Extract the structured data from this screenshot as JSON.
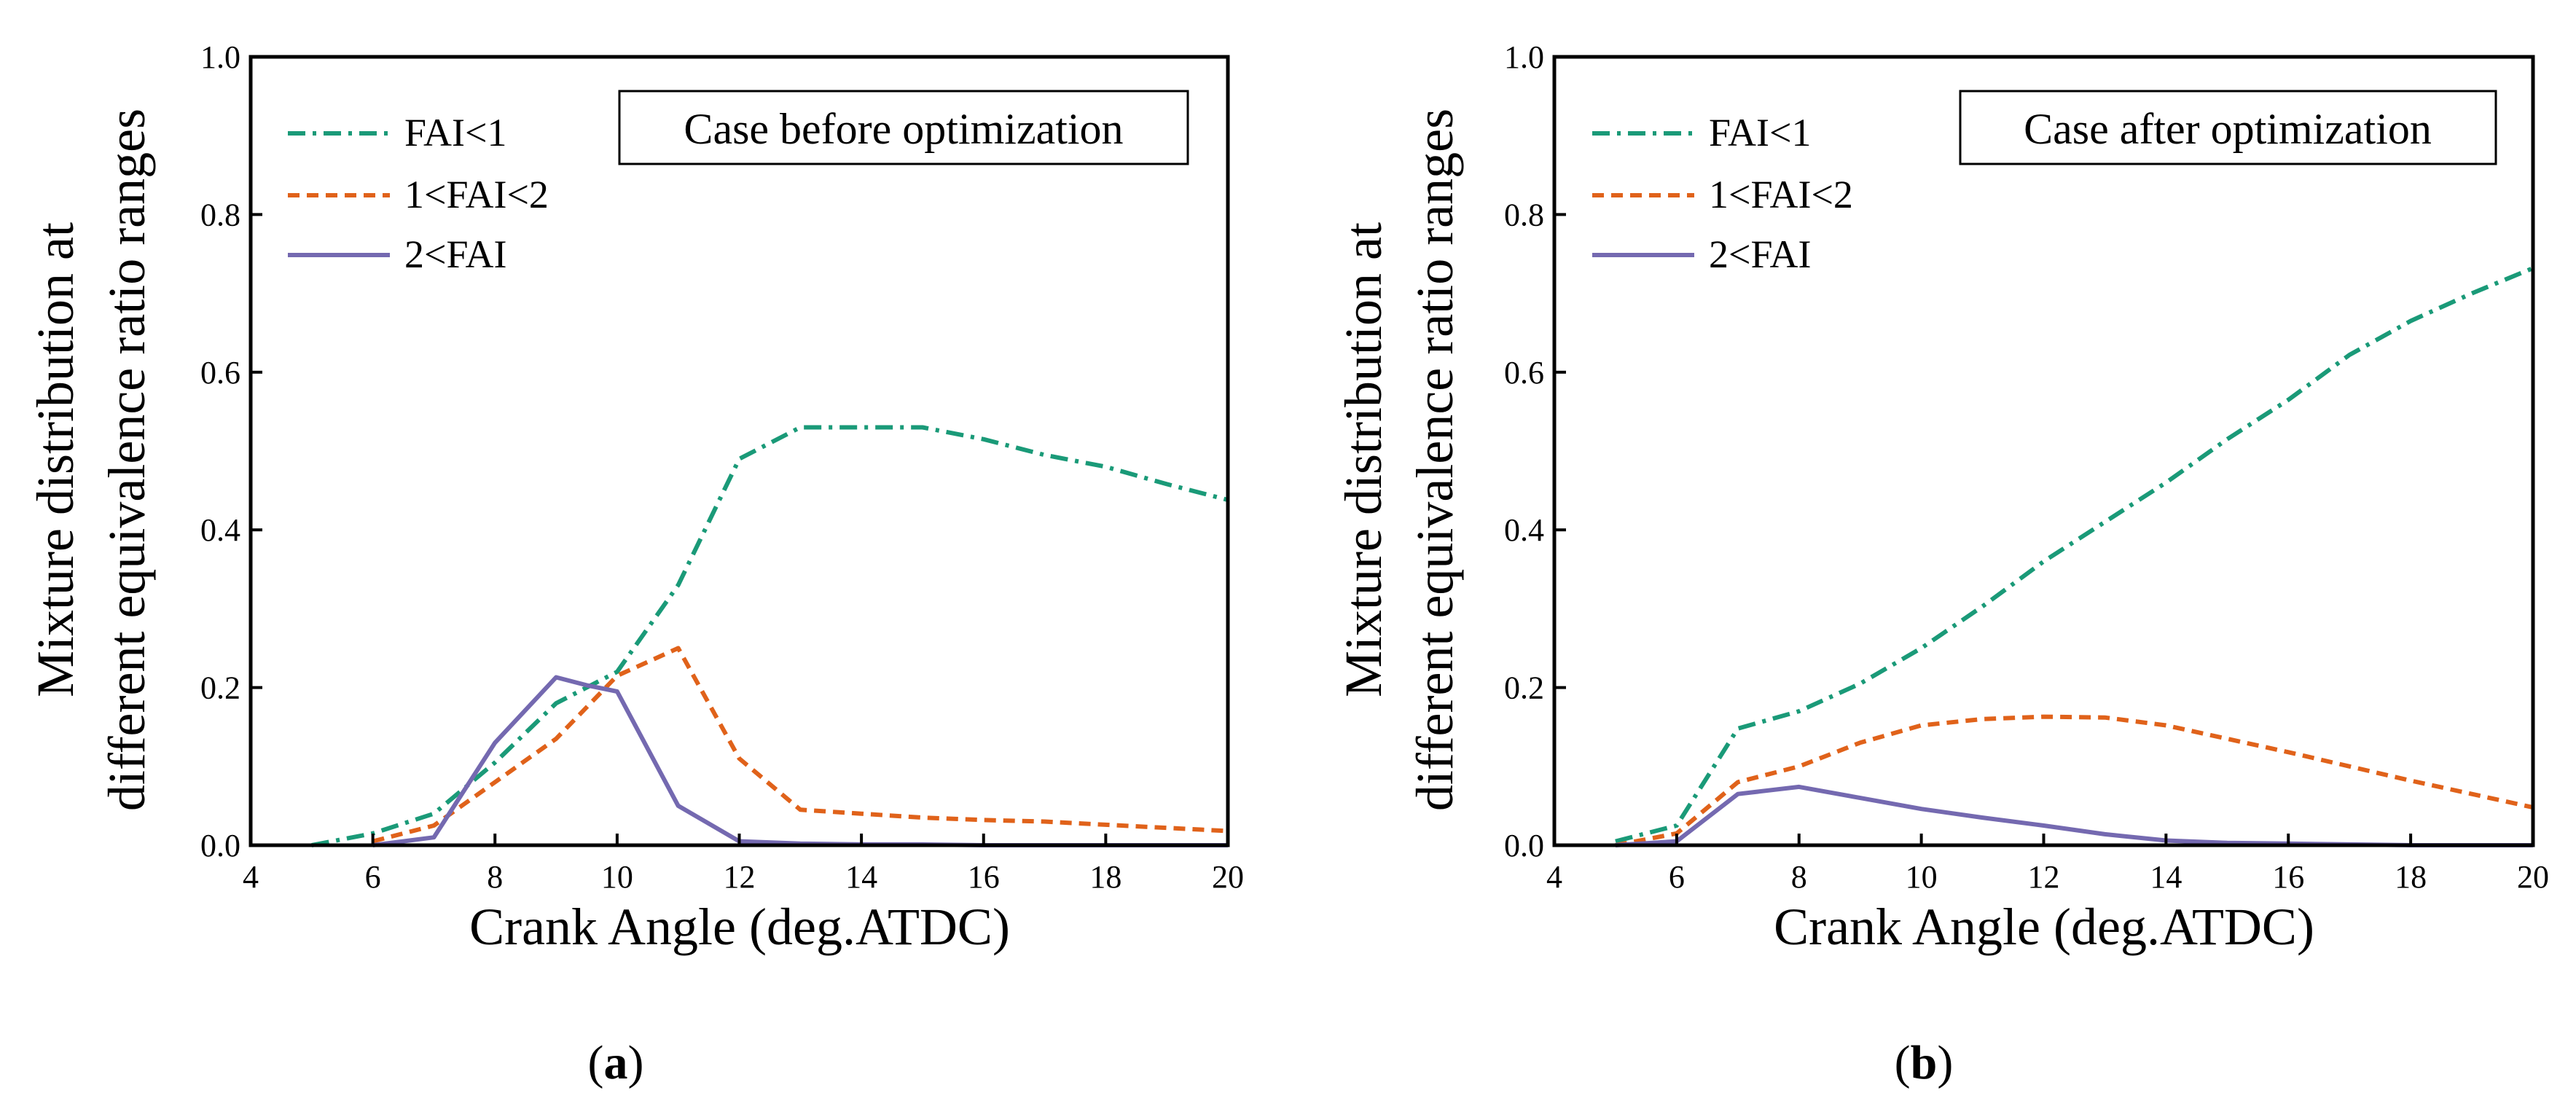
{
  "chart_data": [
    {
      "type": "line",
      "panel": "a",
      "caption": {
        "open": "(",
        "letter": "a",
        "close": ")"
      },
      "annotation": "Case before optimization",
      "xlabel": "Crank Angle (deg.ATDC)",
      "ylabel_line1": "Mixture distribution at",
      "ylabel_line2": "different equivalence ratio ranges",
      "xlim": [
        4,
        20
      ],
      "ylim": [
        0,
        1.0
      ],
      "xticks": [
        4,
        6,
        8,
        10,
        12,
        14,
        16,
        18,
        20
      ],
      "xtick_labels": [
        "4",
        "6",
        "8",
        "10",
        "12",
        "14",
        "16",
        "18",
        "20"
      ],
      "yticks": [
        0,
        0.2,
        0.4,
        0.6,
        0.8,
        1.0
      ],
      "ytick_labels": [
        "0.0",
        "0.2",
        "0.4",
        "0.6",
        "0.8",
        "1.0"
      ],
      "legend_position": "top-left",
      "series": [
        {
          "name": "FAI<1",
          "style": "dashdot",
          "color": "#1a9a78",
          "x": [
            5,
            6,
            7,
            8,
            9,
            10,
            11,
            12,
            13,
            14,
            15,
            16,
            17,
            18,
            19,
            20
          ],
          "y": [
            0.0,
            0.015,
            0.04,
            0.105,
            0.18,
            0.22,
            0.33,
            0.49,
            0.53,
            0.53,
            0.53,
            0.515,
            0.495,
            0.48,
            0.458,
            0.438
          ]
        },
        {
          "name": "1<FAI<2",
          "style": "dashed",
          "color": "#e0621a",
          "x": [
            6,
            7,
            8,
            9,
            10,
            11,
            12,
            13,
            14,
            15,
            16,
            17,
            18,
            19,
            20
          ],
          "y": [
            0.005,
            0.025,
            0.08,
            0.135,
            0.215,
            0.25,
            0.11,
            0.045,
            0.04,
            0.035,
            0.032,
            0.03,
            0.026,
            0.022,
            0.018
          ]
        },
        {
          "name": "2<FAI",
          "style": "solid",
          "color": "#7469b0",
          "x": [
            6,
            7,
            8,
            9,
            9.5,
            10,
            11,
            12,
            13,
            14,
            15,
            16,
            17,
            18,
            19,
            20
          ],
          "y": [
            0.0,
            0.01,
            0.13,
            0.213,
            0.203,
            0.195,
            0.05,
            0.005,
            0.002,
            0.001,
            0.001,
            0.0,
            0.0,
            0.0,
            0.0,
            0.0
          ]
        }
      ]
    },
    {
      "type": "line",
      "panel": "b",
      "caption": {
        "open": "(",
        "letter": "b",
        "close": ")"
      },
      "annotation": "Case after optimization",
      "xlabel": "Crank Angle (deg.ATDC)",
      "ylabel_line1": "Mixture distribution at",
      "ylabel_line2": "different equivalence ratio ranges",
      "xlim": [
        4,
        20
      ],
      "ylim": [
        0,
        1.0
      ],
      "xticks": [
        4,
        6,
        8,
        10,
        12,
        14,
        16,
        18,
        20
      ],
      "xtick_labels": [
        "4",
        "6",
        "8",
        "10",
        "12",
        "14",
        "16",
        "18",
        "20"
      ],
      "yticks": [
        0,
        0.2,
        0.4,
        0.6,
        0.8,
        1.0
      ],
      "ytick_labels": [
        "0.0",
        "0.2",
        "0.4",
        "0.6",
        "0.8",
        "1.0"
      ],
      "legend_position": "top-left",
      "series": [
        {
          "name": "FAI<1",
          "style": "dashdot",
          "color": "#1a9a78",
          "x": [
            5,
            6,
            7,
            8,
            9,
            10,
            11,
            12,
            13,
            14,
            15,
            16,
            17,
            18,
            19,
            20
          ],
          "y": [
            0.005,
            0.025,
            0.148,
            0.17,
            0.205,
            0.25,
            0.303,
            0.36,
            0.41,
            0.46,
            0.515,
            0.565,
            0.622,
            0.665,
            0.7,
            0.732
          ]
        },
        {
          "name": "1<FAI<2",
          "style": "dashed",
          "color": "#e0621a",
          "x": [
            5,
            6,
            7,
            8,
            9,
            10,
            11,
            12,
            13,
            14,
            15,
            16,
            17,
            18,
            19,
            20
          ],
          "y": [
            0.0,
            0.015,
            0.08,
            0.1,
            0.13,
            0.152,
            0.16,
            0.163,
            0.162,
            0.152,
            0.135,
            0.118,
            0.1,
            0.082,
            0.065,
            0.048
          ]
        },
        {
          "name": "2<FAI",
          "style": "solid",
          "color": "#7469b0",
          "x": [
            5,
            6,
            7,
            8,
            9,
            10,
            11,
            12,
            13,
            14,
            15,
            16,
            17,
            18,
            19,
            20
          ],
          "y": [
            0.0,
            0.005,
            0.065,
            0.074,
            0.06,
            0.046,
            0.035,
            0.025,
            0.014,
            0.006,
            0.003,
            0.002,
            0.001,
            0.0,
            0.0,
            0.0
          ]
        }
      ]
    }
  ]
}
